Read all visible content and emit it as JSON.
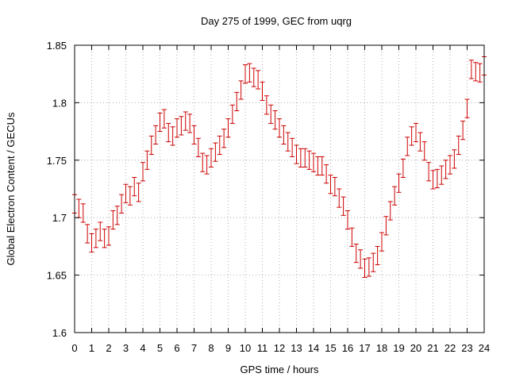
{
  "chart_data": {
    "type": "scatter",
    "title": "Day 275 of 1999, GEC from uqrg",
    "xlabel": "GPS time / hours",
    "ylabel": "Global Electron Content / GECUs",
    "xlim": [
      0,
      24
    ],
    "ylim": [
      1.6,
      1.85
    ],
    "xticks": [
      "0",
      "1",
      "2",
      "3",
      "4",
      "5",
      "6",
      "7",
      "8",
      "9",
      "10",
      "11",
      "12",
      "13",
      "14",
      "15",
      "16",
      "17",
      "18",
      "19",
      "20",
      "21",
      "22",
      "23",
      "24"
    ],
    "yticks": [
      "1.6",
      "1.65",
      "1.7",
      "1.75",
      "1.8",
      "1.85"
    ],
    "grid": true,
    "series_color": "#cc0000",
    "error_bar": 0.008,
    "series": [
      {
        "name": "GEC",
        "x": [
          0,
          0.25,
          0.5,
          0.75,
          1,
          1.25,
          1.5,
          1.75,
          2,
          2.25,
          2.5,
          2.75,
          3,
          3.25,
          3.5,
          3.75,
          4,
          4.25,
          4.5,
          4.75,
          5,
          5.25,
          5.5,
          5.75,
          6,
          6.25,
          6.5,
          6.75,
          7,
          7.25,
          7.5,
          7.75,
          8,
          8.25,
          8.5,
          8.75,
          9,
          9.25,
          9.5,
          9.75,
          10,
          10.25,
          10.5,
          10.75,
          11,
          11.25,
          11.5,
          11.75,
          12,
          12.25,
          12.5,
          12.75,
          13,
          13.25,
          13.5,
          13.75,
          14,
          14.25,
          14.5,
          14.75,
          15,
          15.25,
          15.5,
          15.75,
          16,
          16.25,
          16.5,
          16.75,
          17,
          17.25,
          17.5,
          17.75,
          18,
          18.25,
          18.5,
          18.75,
          19,
          19.25,
          19.5,
          19.75,
          20,
          20.25,
          20.5,
          20.75,
          21,
          21.25,
          21.5,
          21.75,
          22,
          22.25,
          22.5,
          22.75,
          23,
          23.25,
          23.5,
          23.75,
          24
        ],
        "values": [
          1.712,
          1.708,
          1.704,
          1.686,
          1.678,
          1.682,
          1.688,
          1.682,
          1.684,
          1.698,
          1.702,
          1.712,
          1.721,
          1.719,
          1.727,
          1.722,
          1.74,
          1.75,
          1.763,
          1.772,
          1.783,
          1.786,
          1.774,
          1.771,
          1.778,
          1.78,
          1.784,
          1.782,
          1.772,
          1.761,
          1.748,
          1.746,
          1.752,
          1.757,
          1.763,
          1.769,
          1.778,
          1.79,
          1.801,
          1.811,
          1.825,
          1.826,
          1.822,
          1.82,
          1.81,
          1.798,
          1.79,
          1.785,
          1.778,
          1.772,
          1.766,
          1.761,
          1.755,
          1.752,
          1.752,
          1.75,
          1.748,
          1.745,
          1.745,
          1.738,
          1.729,
          1.727,
          1.717,
          1.71,
          1.698,
          1.683,
          1.669,
          1.664,
          1.656,
          1.657,
          1.661,
          1.667,
          1.679,
          1.693,
          1.706,
          1.719,
          1.73,
          1.743,
          1.762,
          1.771,
          1.774,
          1.766,
          1.758,
          1.74,
          1.733,
          1.734,
          1.737,
          1.742,
          1.746,
          1.751,
          1.763,
          1.776,
          1.795,
          1.829,
          1.827,
          1.826,
          1.832
        ]
      }
    ]
  }
}
